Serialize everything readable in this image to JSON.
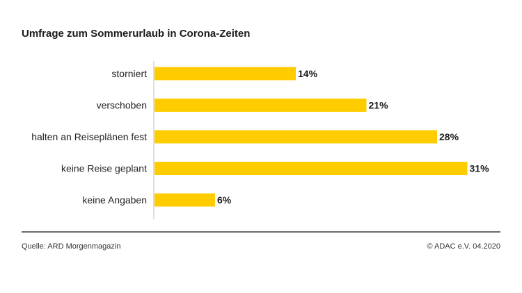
{
  "header": {
    "title": "Umfrage zum Sommerurlaub in Corona-Zeiten"
  },
  "footer": {
    "source": "Quelle: ARD Morgenmagazin",
    "credit": "© ADAC e.V. 04.2020"
  },
  "colors": {
    "bar": "#FFCC00",
    "axis": "#bfbfbf",
    "text": "#222222"
  },
  "chart_data": {
    "type": "bar",
    "orientation": "horizontal",
    "title": "Umfrage zum Sommerurlaub in Corona-Zeiten",
    "categories": [
      "storniert",
      "verschoben",
      "halten an Reiseplänen fest",
      "keine Reise geplant",
      "keine Angaben"
    ],
    "values": [
      14,
      21,
      28,
      31,
      6
    ],
    "value_labels": [
      "14%",
      "21%",
      "28%",
      "31%",
      "6%"
    ],
    "unit": "%",
    "xlim": [
      0,
      31
    ],
    "grid": false,
    "legend": "none"
  }
}
